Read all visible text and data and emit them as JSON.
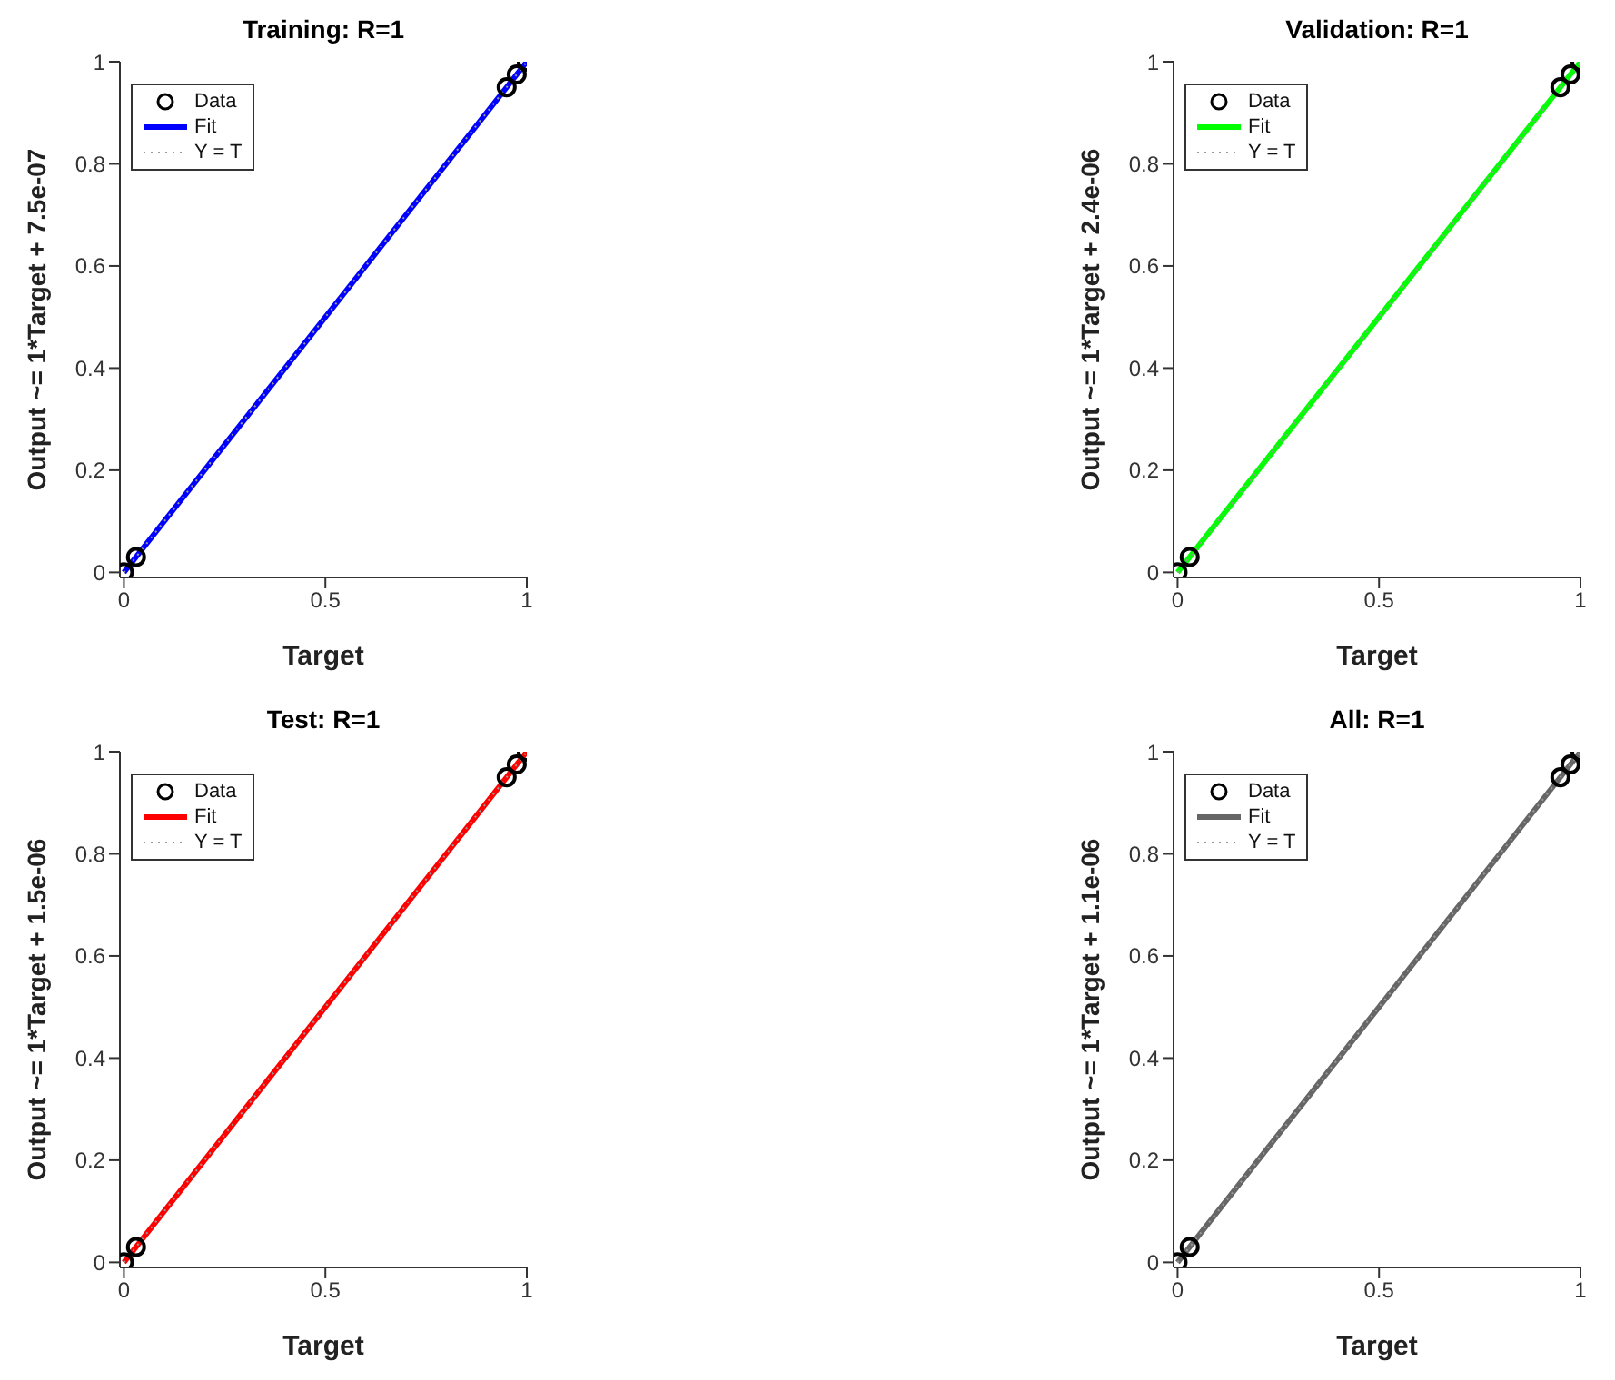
{
  "chart_data": [
    {
      "type": "scatter",
      "title": "Training: R=1",
      "xlabel": "Target",
      "ylabel": "Output ~= 1*Target + 7.5e-07",
      "xlim": [
        -0.01,
        1
      ],
      "ylim": [
        -0.01,
        1
      ],
      "xticks": [
        0,
        0.5,
        1
      ],
      "yticks": [
        0,
        0.2,
        0.4,
        0.6,
        0.8,
        1
      ],
      "grid": false,
      "legend": "top left",
      "series": [
        {
          "name": "Data",
          "type": "scatter",
          "marker": "circle",
          "color": "#000000",
          "x": [
            0,
            0.03,
            0.95,
            0.975,
            1
          ],
          "values": [
            0,
            0.03,
            0.95,
            0.975,
            1
          ]
        },
        {
          "name": "Fit",
          "type": "line",
          "color": "#0000ff",
          "x": [
            0,
            1
          ],
          "values": [
            0,
            1
          ]
        },
        {
          "name": "Y = T",
          "type": "line",
          "line_style": "dotted",
          "color": "#999999",
          "x": [
            0,
            1
          ],
          "values": [
            0,
            1
          ]
        }
      ]
    },
    {
      "type": "scatter",
      "title": "Validation: R=1",
      "xlabel": "Target",
      "ylabel": "Output ~= 1*Target + 2.4e-06",
      "xlim": [
        -0.01,
        1
      ],
      "ylim": [
        -0.01,
        1
      ],
      "xticks": [
        0,
        0.5,
        1
      ],
      "yticks": [
        0,
        0.2,
        0.4,
        0.6,
        0.8,
        1
      ],
      "grid": false,
      "legend": "top left",
      "series": [
        {
          "name": "Data",
          "type": "scatter",
          "marker": "circle",
          "color": "#000000",
          "x": [
            0,
            0.03,
            0.95,
            0.975,
            1
          ],
          "values": [
            0,
            0.03,
            0.95,
            0.975,
            1
          ]
        },
        {
          "name": "Fit",
          "type": "line",
          "color": "#00ff00",
          "x": [
            0,
            1
          ],
          "values": [
            0,
            1
          ]
        },
        {
          "name": "Y = T",
          "type": "line",
          "line_style": "dotted",
          "color": "#999999",
          "x": [
            0,
            1
          ],
          "values": [
            0,
            1
          ]
        }
      ]
    },
    {
      "type": "scatter",
      "title": "Test: R=1",
      "xlabel": "Target",
      "ylabel": "Output ~= 1*Target + 1.5e-06",
      "xlim": [
        -0.01,
        1
      ],
      "ylim": [
        -0.01,
        1
      ],
      "xticks": [
        0,
        0.5,
        1
      ],
      "yticks": [
        0,
        0.2,
        0.4,
        0.6,
        0.8,
        1
      ],
      "grid": false,
      "legend": "top left",
      "series": [
        {
          "name": "Data",
          "type": "scatter",
          "marker": "circle",
          "color": "#000000",
          "x": [
            0,
            0.03,
            0.95,
            0.975,
            1
          ],
          "values": [
            0,
            0.03,
            0.95,
            0.975,
            1
          ]
        },
        {
          "name": "Fit",
          "type": "line",
          "color": "#ff0000",
          "x": [
            0,
            1
          ],
          "values": [
            0,
            1
          ]
        },
        {
          "name": "Y = T",
          "type": "line",
          "line_style": "dotted",
          "color": "#999999",
          "x": [
            0,
            1
          ],
          "values": [
            0,
            1
          ]
        }
      ]
    },
    {
      "type": "scatter",
      "title": "All: R=1",
      "xlabel": "Target",
      "ylabel": "Output ~= 1*Target + 1.1e-06",
      "xlim": [
        -0.01,
        1
      ],
      "ylim": [
        -0.01,
        1
      ],
      "xticks": [
        0,
        0.5,
        1
      ],
      "yticks": [
        0,
        0.2,
        0.4,
        0.6,
        0.8,
        1
      ],
      "grid": false,
      "legend": "top left",
      "series": [
        {
          "name": "Data",
          "type": "scatter",
          "marker": "circle",
          "color": "#000000",
          "x": [
            0,
            0.03,
            0.95,
            0.975,
            1
          ],
          "values": [
            0,
            0.03,
            0.95,
            0.975,
            1
          ]
        },
        {
          "name": "Fit",
          "type": "line",
          "color": "#666666",
          "x": [
            0,
            1
          ],
          "values": [
            0,
            1
          ]
        },
        {
          "name": "Y = T",
          "type": "line",
          "line_style": "dotted",
          "color": "#999999",
          "x": [
            0,
            1
          ],
          "values": [
            0,
            1
          ]
        }
      ]
    }
  ]
}
